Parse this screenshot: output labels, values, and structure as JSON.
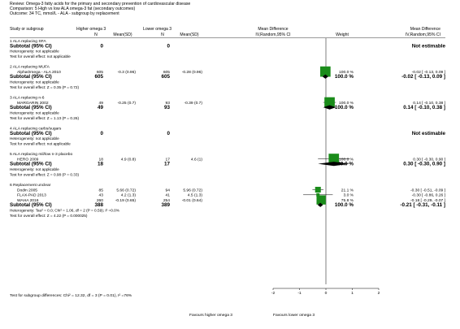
{
  "header": {
    "review": "Review:  Omega-3 fatty acids for the primary and secondary prevention of cardiovascular disease",
    "comparison": "Comparison:  5 High vs low ALA omega-3 fat (secondary outcomes)",
    "outcome": "Outcome:  34 TC, mmol/L - ALA - subgroup by replacement"
  },
  "columns": {
    "study": "Study or subgroup",
    "higher": "Higher omega 3",
    "lower": "Lower omega 3",
    "n": "N",
    "meansd": "Mean(SD)",
    "md_title": "Mean Difference",
    "md_sub": "IV,Random,95% CI",
    "weight": "Weight"
  },
  "rows": [
    {
      "kind": "group",
      "label": "1 ALA replacing SFA"
    },
    {
      "kind": "subtotal",
      "label": "Subtotal (95% CI)",
      "n1": "0",
      "n2": "0",
      "weight": "",
      "ci": "Not estimable"
    },
    {
      "kind": "note",
      "label": "Heterogeneity: not applicable"
    },
    {
      "kind": "note",
      "label": "Test for overall effect: not applicable"
    },
    {
      "kind": "blank"
    },
    {
      "kind": "group",
      "label": "2 ALA replacing MUFA"
    },
    {
      "kind": "study",
      "label": "AlphaOmega - ALA 2010",
      "n1": "605",
      "m1": "-0.3 (0.96)",
      "n2": "605",
      "m2": "-0.28 (0.96)",
      "weight": "100.0 %",
      "ci": "-0.02 [ -0.13, 0.09 ]"
    },
    {
      "kind": "subtotal",
      "label": "Subtotal (95% CI)",
      "n1": "605",
      "n2": "605",
      "weight": "100.0 %",
      "ci": "-0.02 [ -0.13, 0.09 ]"
    },
    {
      "kind": "note",
      "label": "Heterogeneity: not applicable"
    },
    {
      "kind": "note",
      "label": "Test for overall effect: Z = 0.35 (P = 0.72)"
    },
    {
      "kind": "blank"
    },
    {
      "kind": "group",
      "label": "3 ALA replacing n-6"
    },
    {
      "kind": "study",
      "label": "MARGARIN 2002",
      "n1": "49",
      "m1": "-0.25 (0.7)",
      "n2": "93",
      "m2": "-0.39 (0.7)",
      "weight": "100.0 %",
      "ci": "0.14 [ -0.10, 0.38 ]"
    },
    {
      "kind": "subtotal",
      "label": "Subtotal (95% CI)",
      "n1": "49",
      "n2": "93",
      "weight": "100.0 %",
      "ci": "0.14 [ -0.10, 0.38 ]"
    },
    {
      "kind": "note",
      "label": "Heterogeneity: not applicable"
    },
    {
      "kind": "note",
      "label": "Test for overall effect: Z = 1.13 (P = 0.26)"
    },
    {
      "kind": "blank"
    },
    {
      "kind": "group",
      "label": "4 ALA replacing carbs/sugars"
    },
    {
      "kind": "subtotal",
      "label": "Subtotal (95% CI)",
      "n1": "0",
      "n2": "0",
      "weight": "",
      "ci": "Not estimable"
    },
    {
      "kind": "note",
      "label": "Heterogeneity: not applicable"
    },
    {
      "kind": "note",
      "label": "Test for overall effect: not applicable"
    },
    {
      "kind": "blank"
    },
    {
      "kind": "group",
      "label": "5 ALA replacing mil/low n-3 placebo"
    },
    {
      "kind": "study",
      "label": "HERO 2009",
      "n1": "18",
      "m1": "4.9 (0.8)",
      "n2": "17",
      "m2": "4.6 (1)",
      "weight": "100.0 %",
      "ci": "0.30 [ -0.30, 0.90 ]"
    },
    {
      "kind": "subtotal",
      "label": "Subtotal (95% CI)",
      "n1": "18",
      "n2": "17",
      "weight": "100.0 %",
      "ci": "0.30 [ -0.30, 0.90 ]"
    },
    {
      "kind": "note",
      "label": "Heterogeneity: not applicable"
    },
    {
      "kind": "note",
      "label": "Test for overall effect: Z = 0.98 (P = 0.33)"
    },
    {
      "kind": "blank"
    },
    {
      "kind": "group",
      "label": "6 Replacement unclear"
    },
    {
      "kind": "study",
      "label": "Dodin 2005",
      "n1": "85",
      "m1": "5.66 (0.72)",
      "n2": "94",
      "m2": "5.96 (0.72)",
      "weight": "21.1 %",
      "ci": "-0.30 [ -0.51, -0.09 ]"
    },
    {
      "kind": "study",
      "label": "FLAX-PAD 2013",
      "n1": "43",
      "m1": "4.2 (1.3)",
      "n2": "41",
      "m2": "4.5 (1.3)",
      "weight": "3.0 %",
      "ci": "-0.30 [ -0.86, 0.26 ]"
    },
    {
      "kind": "study",
      "label": "WAHA 2016",
      "n1": "260",
      "m1": "-0.19 (0.65)",
      "n2": "254",
      "m2": "-0.01 (0.64)",
      "weight": "75.8 %",
      "ci": "-0.18 [ -0.29, -0.07 ]"
    },
    {
      "kind": "subtotal",
      "label": "Subtotal (95% CI)",
      "n1": "388",
      "n2": "389",
      "weight": "100.0 %",
      "ci": "-0.21 [ -0.31, -0.11 ]"
    },
    {
      "kind": "note",
      "label": "Heterogeneity: Tau² = 0.0; Chi² = 1.06, df = 2 (P = 0.59); I² =0.0%"
    },
    {
      "kind": "note",
      "label": "Test for overall effect: Z = 4.22 (P = 0.000025)"
    }
  ],
  "footer": {
    "subgroup_test": "Test for subgroup differences: Chi² = 12.32, df = 3 (P = 0.01), I² =76%",
    "favours_left": "Favours higher omega 3",
    "favours_right": "Favours lower omega 3"
  },
  "colors": {
    "marker": "#1a8c1a",
    "line": "#000000"
  },
  "chart_data": {
    "type": "forest",
    "axis": {
      "min": -2,
      "max": 2,
      "ticks": [
        -2,
        -1,
        0,
        1,
        2
      ]
    },
    "studies": [
      {
        "name": "AlphaOmega - ALA 2010",
        "md": -0.02,
        "lo": -0.13,
        "hi": 0.09,
        "weight": 100.0
      },
      {
        "name": "MARGARIN 2002",
        "md": 0.14,
        "lo": -0.1,
        "hi": 0.38,
        "weight": 100.0
      },
      {
        "name": "HERO 2009",
        "md": 0.3,
        "lo": -0.3,
        "hi": 0.9,
        "weight": 100.0
      },
      {
        "name": "Dodin 2005",
        "md": -0.3,
        "lo": -0.51,
        "hi": -0.09,
        "weight": 21.1
      },
      {
        "name": "FLAX-PAD 2013",
        "md": -0.3,
        "lo": -0.86,
        "hi": 0.26,
        "weight": 3.0
      },
      {
        "name": "WAHA 2016",
        "md": -0.18,
        "lo": -0.29,
        "hi": -0.07,
        "weight": 75.8
      }
    ],
    "subtotals": [
      {
        "name": "2 ALA replacing MUFA",
        "md": -0.02,
        "lo": -0.13,
        "hi": 0.09
      },
      {
        "name": "3 ALA replacing n-6",
        "md": 0.14,
        "lo": -0.1,
        "hi": 0.38
      },
      {
        "name": "5 ALA replacing mil/low n-3 placebo",
        "md": 0.3,
        "lo": -0.3,
        "hi": 0.9
      },
      {
        "name": "6 Replacement unclear",
        "md": -0.21,
        "lo": -0.31,
        "hi": -0.11
      }
    ]
  }
}
